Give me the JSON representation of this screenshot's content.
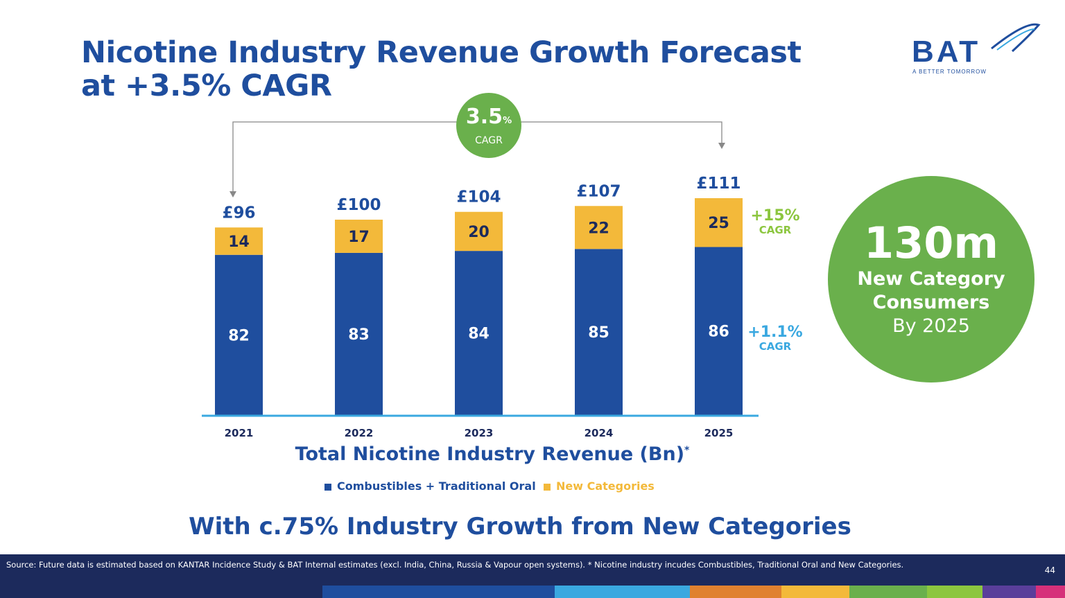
{
  "title_line1": "Nicotine Industry Revenue Growth Forecast",
  "title_line2": "at +3.5% CAGR",
  "logo": {
    "name": "BAT",
    "tagline": "A BETTER TOMORROW"
  },
  "cagr_bubble": {
    "value": "3.5",
    "unit": "%",
    "label": "CAGR"
  },
  "growth_labels": {
    "new": {
      "pct": "+15%",
      "label": "CAGR"
    },
    "combustibles": {
      "pct": "+1.1%",
      "label": "CAGR"
    }
  },
  "chart_data": {
    "type": "bar",
    "stacked": true,
    "title": "Total Nicotine Industry Revenue (Bn)",
    "title_mark": "*",
    "categories": [
      "2021",
      "2022",
      "2023",
      "2024",
      "2025"
    ],
    "series": [
      {
        "name": "Combustibles + Traditional Oral",
        "color": "#1f4e9e",
        "values": [
          82,
          83,
          84,
          85,
          86
        ]
      },
      {
        "name": "New Categories",
        "color": "#f3b93a",
        "values": [
          14,
          17,
          20,
          22,
          25
        ]
      }
    ],
    "totals": [
      "£96",
      "£100",
      "£104",
      "£107",
      "£111"
    ],
    "ylim": [
      0,
      120
    ]
  },
  "circle": {
    "big": "130m",
    "line1": "New Category",
    "line2": "Consumers",
    "line3": "By 2025"
  },
  "subtitle": "With c.75% Industry Growth from New Categories",
  "footer": {
    "source": "Source: Future data is estimated based on KANTAR Incidence Study & BAT Internal estimates (excl. India, China, Russia & Vapour open systems). * Nicotine industry incudes Combustibles, Traditional Oral and New Categories.",
    "page": "44"
  },
  "colors": {
    "navy": "#1f4e9e",
    "yellow": "#f3b93a",
    "green": "#6ab04c",
    "axis": "#3aa8e0",
    "stripes": [
      "#1f4e9e",
      "#3aa8e0",
      "#e0812f",
      "#f3b93a",
      "#6ab04c",
      "#8cc63f",
      "#5a3e9a",
      "#d6307a"
    ]
  }
}
